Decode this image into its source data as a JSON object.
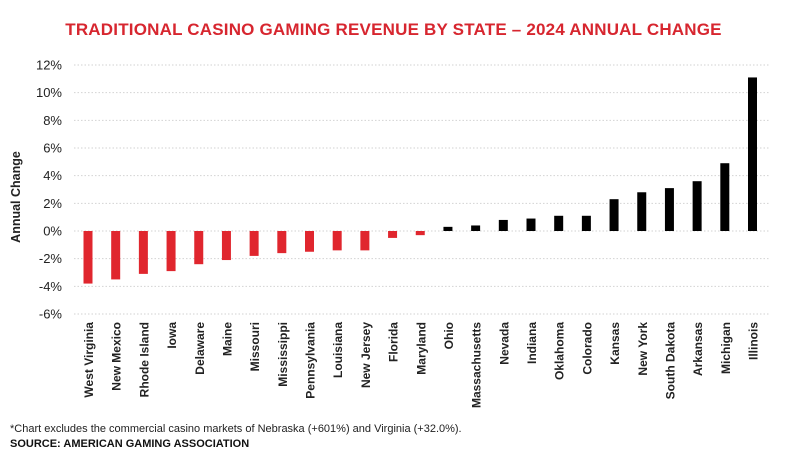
{
  "chart_data": {
    "type": "bar",
    "title": "TRADITIONAL CASINO GAMING REVENUE BY STATE – 2024 ANNUAL CHANGE",
    "ylabel": "Annual Change",
    "xlabel": "",
    "ylim": [
      -6,
      12
    ],
    "yticks": [
      12,
      10,
      8,
      6,
      4,
      2,
      0,
      -2,
      -4,
      -6
    ],
    "ytick_labels": [
      "12%",
      "10%",
      "8%",
      "6%",
      "4%",
      "2%",
      "0%",
      "-2%",
      "-4%",
      "-6%"
    ],
    "grid": "horizontal",
    "categories": [
      "West Virginia",
      "New Mexico",
      "Rhode Island",
      "Iowa",
      "Delaware",
      "Maine",
      "Missouri",
      "Mississippi",
      "Pennsylvania",
      "Louisiana",
      "New Jersey",
      "Florida",
      "Maryland",
      "Ohio",
      "Massachusetts",
      "Nevada",
      "Indiana",
      "Oklahoma",
      "Colorado",
      "Kansas",
      "New York",
      "South Dakota",
      "Arkansas",
      "Michigan",
      "Illinois"
    ],
    "values": [
      -3.8,
      -3.5,
      -3.1,
      -2.9,
      -2.4,
      -2.1,
      -1.8,
      -1.6,
      -1.5,
      -1.4,
      -1.4,
      -0.5,
      -0.3,
      0.3,
      0.4,
      0.8,
      0.9,
      1.1,
      1.1,
      2.3,
      2.8,
      3.1,
      3.6,
      4.9,
      11.1
    ],
    "colors": {
      "negative": "#e0262e",
      "positive": "#000000"
    }
  },
  "footnote": "*Chart excludes the commercial casino markets of Nebraska (+601%) and Virginia (+32.0%).",
  "source": "SOURCE: AMERICAN GAMING ASSOCIATION"
}
